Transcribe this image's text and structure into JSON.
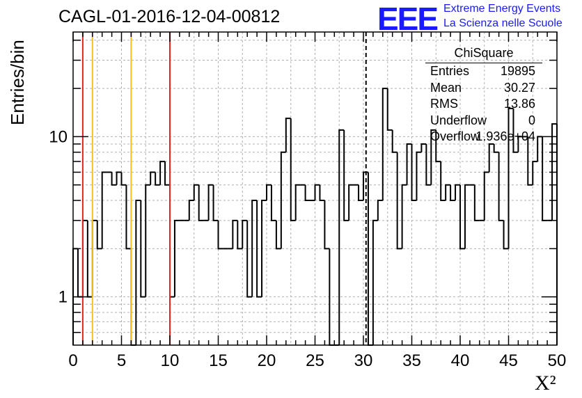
{
  "title": "CAGL-01-2016-12-04-00812",
  "logo": {
    "mark": "EEE",
    "line1": "Extreme Energy Events",
    "line2": "La Scienza nelle Scuole",
    "color": "#1a1aff"
  },
  "stats": {
    "title": "ChiSquare",
    "rows": [
      {
        "key": "Entries",
        "value": "19895"
      },
      {
        "key": "Mean",
        "value": "30.27"
      },
      {
        "key": "RMS",
        "value": "13.86"
      },
      {
        "key": "Underflow",
        "value": "0"
      },
      {
        "key": "Overflow",
        "value": "1.936e+04"
      }
    ]
  },
  "chart_data": {
    "type": "histogram",
    "xlabel": "X²",
    "ylabel": "Entries/bin",
    "xlim": [
      0,
      50
    ],
    "ylim": [
      0.5,
      45
    ],
    "ylog": true,
    "grid": true,
    "bin_width": 0.5,
    "x_ticks": [
      "0",
      "5",
      "10",
      "15",
      "20",
      "25",
      "30",
      "35",
      "40",
      "45",
      "50"
    ],
    "y_ticks": [
      "1",
      "10"
    ],
    "values": [
      2,
      1,
      3,
      1,
      3,
      2,
      6,
      6,
      5,
      6,
      5,
      2,
      0,
      4,
      1,
      5,
      6,
      5,
      7,
      5,
      1,
      3,
      3,
      3,
      4,
      5,
      3,
      3,
      5,
      3,
      2,
      2,
      2,
      3,
      2,
      3,
      1,
      4,
      1,
      4,
      5,
      3,
      2,
      8,
      13,
      3,
      5,
      5,
      4,
      4,
      5,
      4,
      2,
      0,
      0,
      11,
      3,
      5,
      5,
      4,
      6,
      0,
      3,
      4,
      20,
      11,
      8,
      2,
      5,
      9,
      4,
      8,
      9,
      5,
      11,
      7,
      4,
      5,
      4,
      5,
      2,
      5,
      5,
      3,
      3,
      6,
      9,
      8,
      3,
      2,
      15,
      8,
      10,
      10,
      5,
      7,
      10,
      3,
      3,
      12
    ],
    "vlines": [
      {
        "x": 1,
        "color": "#e8231f",
        "style": "solid"
      },
      {
        "x": 2,
        "color": "#f4c21a",
        "style": "solid"
      },
      {
        "x": 6,
        "color": "#f4c21a",
        "style": "solid"
      },
      {
        "x": 10,
        "color": "#e8231f",
        "style": "solid"
      },
      {
        "x": 30.27,
        "color": "#000000",
        "style": "dashed"
      }
    ]
  }
}
